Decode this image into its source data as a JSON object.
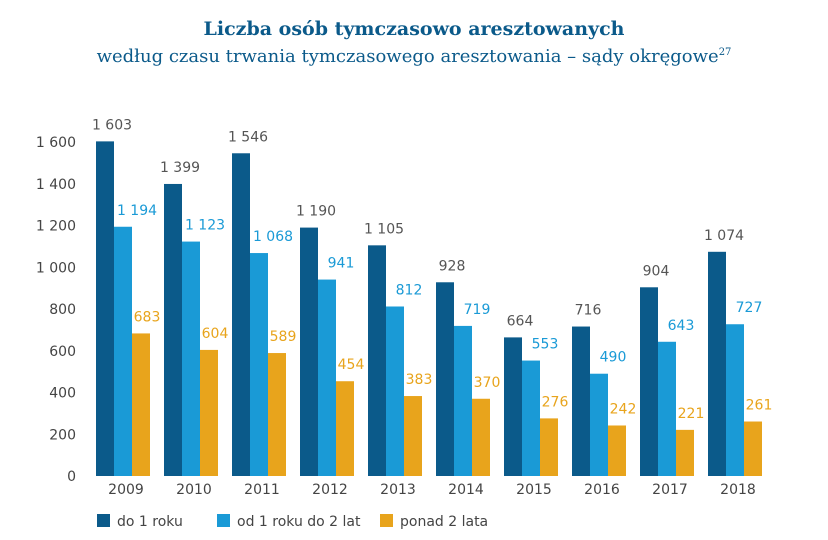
{
  "chart_data": {
    "type": "bar",
    "title": "Liczba osób tymczasowo aresztowanych",
    "subtitle": "według czasu trwania tymczasowego aresztowania – sądy okręgowe",
    "subtitle_footnote": "27",
    "categories": [
      "2009",
      "2010",
      "2011",
      "2012",
      "2013",
      "2014",
      "2015",
      "2016",
      "2017",
      "2018"
    ],
    "series": [
      {
        "name": "do 1 roku",
        "color": "#0b5a8a",
        "label_color": "#555555",
        "values": [
          1603,
          1399,
          1546,
          1190,
          1105,
          928,
          664,
          716,
          904,
          1074
        ]
      },
      {
        "name": "od 1 roku do 2 lat",
        "color": "#1a9ad6",
        "label_color": "#1a9ad6",
        "values": [
          1194,
          1123,
          1068,
          941,
          812,
          719,
          553,
          490,
          643,
          727
        ]
      },
      {
        "name": "ponad 2 lata",
        "color": "#e8a41c",
        "label_color": "#e8a41c",
        "values": [
          683,
          604,
          589,
          454,
          383,
          370,
          276,
          242,
          221,
          261
        ]
      }
    ],
    "ylim": [
      0,
      1600
    ],
    "yticks": [
      0,
      200,
      400,
      600,
      800,
      1000,
      1200,
      1400,
      1600
    ],
    "ytick_labels": [
      "0",
      "200",
      "400",
      "600",
      "800",
      "1 000",
      "1 200",
      "1 400",
      "1 600"
    ],
    "grid": false,
    "legend_position": "bottom-left",
    "xlabel": "",
    "ylabel": ""
  }
}
